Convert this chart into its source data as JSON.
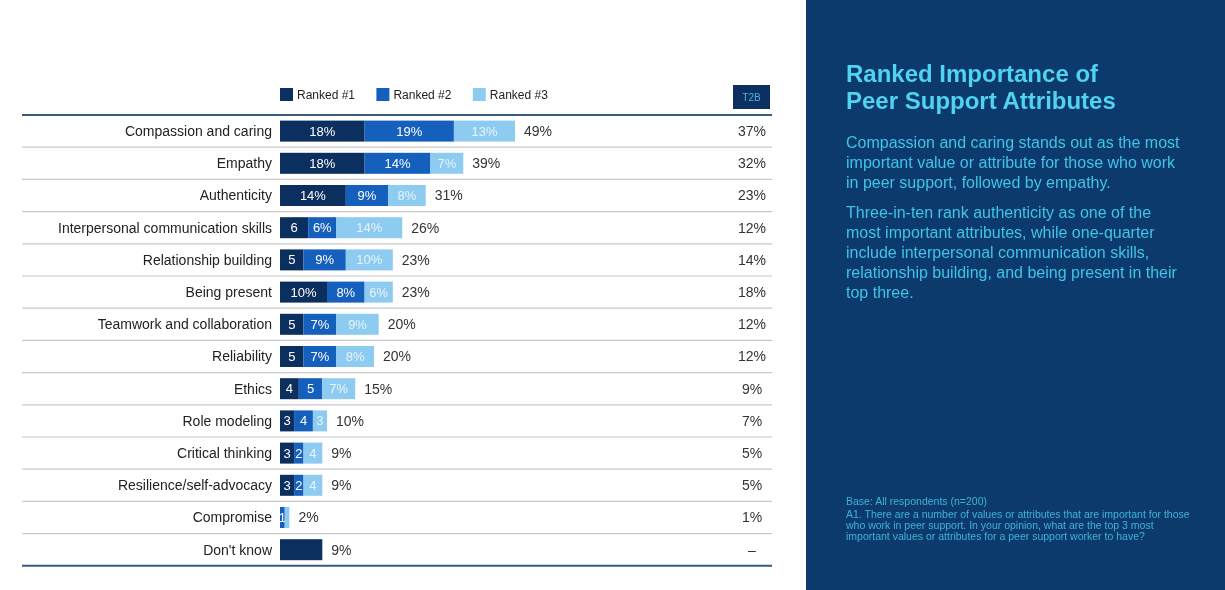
{
  "chart_data": {
    "type": "bar",
    "orientation": "horizontal",
    "stacked": true,
    "legend": "top",
    "title": "Ranked Importance of Peer Support Attributes",
    "categories": [
      "Compassion and caring",
      "Empathy",
      "Authenticity",
      "Interpersonal communication skills",
      "Relationship building",
      "Being present",
      "Teamwork and collaboration",
      "Reliability",
      "Ethics",
      "Role modeling",
      "Critical thinking",
      "Resilience/self-advocacy",
      "Compromise",
      "Don't know"
    ],
    "series": [
      {
        "name": "Ranked #1",
        "color": "#0b2f5e",
        "values": [
          18,
          18,
          14,
          6,
          5,
          10,
          5,
          5,
          4,
          3,
          3,
          3,
          0,
          9
        ],
        "value_labels": [
          "18%",
          "18%",
          "14%",
          "6",
          "5",
          "10%",
          "5",
          "5",
          "4",
          "3",
          "3",
          "3",
          null,
          null
        ]
      },
      {
        "name": "Ranked #2",
        "color": "#1560bd",
        "values": [
          19,
          14,
          9,
          6,
          9,
          8,
          7,
          7,
          5,
          4,
          2,
          2,
          1,
          null
        ],
        "value_labels": [
          "19%",
          "14%",
          "9%",
          "6%",
          "9%",
          "8%",
          "7%",
          "7%",
          "5",
          "4",
          "2",
          "2",
          "1",
          null
        ]
      },
      {
        "name": "Ranked #3",
        "color": "#8ecbf0",
        "values": [
          13,
          7,
          8,
          14,
          10,
          6,
          9,
          8,
          7,
          3,
          4,
          4,
          1,
          null
        ],
        "value_labels": [
          "13%",
          "7%",
          "8%",
          "14%",
          "10%",
          "6%",
          "9%",
          "8%",
          "7%",
          "3",
          "4",
          "4",
          null,
          null
        ]
      }
    ],
    "totals": [
      "49%",
      "39%",
      "31%",
      "26%",
      "23%",
      "23%",
      "20%",
      "20%",
      "15%",
      "10%",
      "9%",
      "9%",
      "2%",
      "9%"
    ],
    "annotations": [
      "T2B",
      "37%",
      "32%",
      "23%",
      "12%",
      "14%",
      "18%",
      "12%",
      "12%",
      "9%",
      "7%",
      "5%",
      "5%",
      "1%",
      "–",
      "Compassion and caring stands out as the most important value or attribute for those who work in peer support, followed by empathy.",
      "Three-in-ten rank authenticity as one of the most important attributes, while one-quarter include interpersonal communication skills, relationship building, and being present in their top three.",
      "Base: All respondents (n=200)",
      "A1. There are a number of values or attributes that are important for those who work in peer support.  In your opinion, what are the top 3 most important values or attributes for a peer support worker to have?"
    ]
  }
}
